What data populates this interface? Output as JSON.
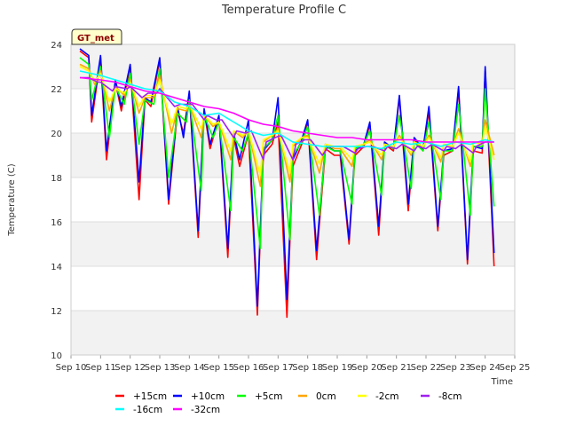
{
  "chart_data": {
    "type": "line",
    "title": "Temperature Profile C",
    "xlabel": "Time",
    "ylabel": "Temperature (C)",
    "badge": "GT_met",
    "xlim": [
      10,
      25
    ],
    "ylim": [
      10,
      24
    ],
    "x_ticks": [
      {
        "v": 10,
        "label": "Sep 10"
      },
      {
        "v": 11,
        "label": "Sep 11"
      },
      {
        "v": 12,
        "label": "Sep 12"
      },
      {
        "v": 13,
        "label": "Sep 13"
      },
      {
        "v": 14,
        "label": "Sep 14"
      },
      {
        "v": 15,
        "label": "Sep 15"
      },
      {
        "v": 16,
        "label": "Sep 16"
      },
      {
        "v": 17,
        "label": "Sep 17"
      },
      {
        "v": 18,
        "label": "Sep 18"
      },
      {
        "v": 19,
        "label": "Sep 19"
      },
      {
        "v": 20,
        "label": "Sep 20"
      },
      {
        "v": 21,
        "label": "Sep 21"
      },
      {
        "v": 22,
        "label": "Sep 22"
      },
      {
        "v": 23,
        "label": "Sep 23"
      },
      {
        "v": 24,
        "label": "Sep 24"
      },
      {
        "v": 25,
        "label": "Sep 25"
      }
    ],
    "y_ticks": [
      10,
      12,
      14,
      16,
      18,
      20,
      22,
      24
    ],
    "grid": true,
    "legend_position": "bottom",
    "series": [
      {
        "name": "+15cm",
        "color": "#ff0000",
        "x": [
          10.3,
          10.6,
          10.7,
          11.0,
          11.2,
          11.5,
          11.7,
          12.0,
          12.3,
          12.5,
          12.7,
          13.0,
          13.3,
          13.6,
          13.8,
          14.0,
          14.3,
          14.5,
          14.7,
          15.0,
          15.3,
          15.5,
          15.7,
          16.0,
          16.3,
          16.5,
          16.8,
          17.0,
          17.3,
          17.5,
          17.8,
          18.0,
          18.3,
          18.6,
          18.9,
          19.1,
          19.4,
          19.6,
          19.9,
          20.1,
          20.4,
          20.6,
          20.9,
          21.1,
          21.4,
          21.6,
          21.9,
          22.1,
          22.4,
          22.6,
          22.9,
          23.1,
          23.4,
          23.6,
          23.9,
          24.0,
          24.3
        ],
        "values": [
          23.7,
          23.4,
          20.5,
          23.4,
          18.8,
          22.3,
          21.0,
          23.0,
          17.0,
          21.5,
          21.2,
          23.3,
          16.8,
          21.0,
          20.0,
          21.8,
          15.3,
          21.0,
          19.3,
          20.7,
          14.4,
          19.8,
          18.5,
          20.0,
          11.8,
          19.0,
          19.5,
          20.5,
          11.7,
          18.5,
          19.5,
          20.5,
          14.3,
          19.3,
          19.0,
          19.0,
          15.0,
          19.0,
          19.4,
          20.4,
          15.4,
          19.5,
          19.2,
          21.6,
          16.5,
          19.7,
          19.2,
          21.0,
          15.6,
          19.0,
          19.2,
          22.0,
          14.1,
          19.2,
          19.1,
          22.8,
          14.0
        ]
      },
      {
        "name": "+10cm",
        "color": "#0000ff",
        "x": [
          10.3,
          10.6,
          10.7,
          11.0,
          11.2,
          11.5,
          11.7,
          12.0,
          12.3,
          12.5,
          12.7,
          13.0,
          13.3,
          13.6,
          13.8,
          14.0,
          14.3,
          14.5,
          14.7,
          15.0,
          15.3,
          15.5,
          15.7,
          16.0,
          16.3,
          16.5,
          16.8,
          17.0,
          17.3,
          17.5,
          17.8,
          18.0,
          18.3,
          18.6,
          18.9,
          19.1,
          19.4,
          19.6,
          19.9,
          20.1,
          20.4,
          20.6,
          20.9,
          21.1,
          21.4,
          21.6,
          21.9,
          22.1,
          22.4,
          22.6,
          22.9,
          23.1,
          23.4,
          23.6,
          23.9,
          24.0,
          24.3
        ],
        "values": [
          23.8,
          23.5,
          20.8,
          23.5,
          19.2,
          22.4,
          21.2,
          23.1,
          17.8,
          21.6,
          21.4,
          23.4,
          17.0,
          21.2,
          19.8,
          21.9,
          15.6,
          21.1,
          19.5,
          20.8,
          14.8,
          20.0,
          18.8,
          20.6,
          12.2,
          19.2,
          19.7,
          21.6,
          12.5,
          18.8,
          19.7,
          20.6,
          14.7,
          19.5,
          19.2,
          19.2,
          15.2,
          19.2,
          19.5,
          20.5,
          15.8,
          19.6,
          19.3,
          21.7,
          16.8,
          19.8,
          19.3,
          21.2,
          15.8,
          19.2,
          19.3,
          22.1,
          14.3,
          19.4,
          19.3,
          23.0,
          14.6
        ]
      },
      {
        "name": "+5cm",
        "color": "#00ff00",
        "x": [
          10.3,
          10.6,
          10.7,
          11.0,
          11.3,
          11.5,
          11.8,
          12.0,
          12.3,
          12.5,
          12.8,
          13.0,
          13.3,
          13.6,
          13.9,
          14.0,
          14.4,
          14.5,
          14.8,
          15.0,
          15.4,
          15.5,
          15.8,
          16.0,
          16.4,
          16.5,
          16.8,
          17.0,
          17.4,
          17.5,
          17.8,
          18.0,
          18.4,
          18.6,
          18.9,
          19.1,
          19.5,
          19.6,
          19.9,
          20.1,
          20.5,
          20.6,
          20.9,
          21.1,
          21.5,
          21.6,
          21.9,
          22.1,
          22.5,
          22.6,
          22.9,
          23.1,
          23.5,
          23.6,
          23.9,
          24.0,
          24.3
        ],
        "values": [
          23.4,
          23.1,
          21.5,
          23.0,
          19.8,
          22.1,
          21.3,
          22.7,
          19.5,
          21.5,
          21.3,
          22.9,
          18.0,
          20.9,
          20.5,
          21.5,
          17.4,
          20.8,
          19.8,
          20.5,
          16.5,
          19.8,
          19.2,
          20.0,
          14.8,
          19.3,
          19.7,
          20.8,
          15.2,
          19.0,
          19.6,
          20.3,
          16.3,
          19.4,
          19.2,
          19.2,
          16.8,
          19.3,
          19.5,
          20.1,
          17.2,
          19.5,
          19.3,
          20.8,
          17.5,
          19.6,
          19.2,
          20.5,
          17.0,
          19.2,
          19.2,
          21.3,
          16.3,
          19.4,
          19.4,
          22.0,
          16.7
        ]
      },
      {
        "name": "0cm",
        "color": "#ffa500",
        "x": [
          10.3,
          10.6,
          10.8,
          11.0,
          11.3,
          11.5,
          11.8,
          12.0,
          12.3,
          12.5,
          12.8,
          13.0,
          13.4,
          13.6,
          13.9,
          14.0,
          14.4,
          14.5,
          14.8,
          15.0,
          15.4,
          15.5,
          15.8,
          16.0,
          16.4,
          16.5,
          16.8,
          17.0,
          17.4,
          17.5,
          17.8,
          18.0,
          18.4,
          18.6,
          18.9,
          19.1,
          19.5,
          19.6,
          19.9,
          20.1,
          20.5,
          20.6,
          20.9,
          21.1,
          21.5,
          21.6,
          21.9,
          22.1,
          22.5,
          22.6,
          22.9,
          23.1,
          23.5,
          23.6,
          23.9,
          24.0,
          24.3
        ],
        "values": [
          23.1,
          22.9,
          22.2,
          22.8,
          21.0,
          22.1,
          21.7,
          22.4,
          20.9,
          21.6,
          21.6,
          22.6,
          20.0,
          21.1,
          21.0,
          21.3,
          19.8,
          20.8,
          20.3,
          20.5,
          18.8,
          20.1,
          19.8,
          20.1,
          17.6,
          19.6,
          19.9,
          20.2,
          17.8,
          19.4,
          19.8,
          19.9,
          18.2,
          19.5,
          19.3,
          19.3,
          18.5,
          19.4,
          19.5,
          19.7,
          18.8,
          19.5,
          19.4,
          19.9,
          19.0,
          19.6,
          19.4,
          19.9,
          18.7,
          19.5,
          19.4,
          20.2,
          18.5,
          19.6,
          19.5,
          20.6,
          19.0
        ]
      },
      {
        "name": "-2cm",
        "color": "#ffff00",
        "x": [
          10.3,
          10.6,
          10.8,
          11.0,
          11.3,
          11.5,
          11.8,
          12.0,
          12.3,
          12.5,
          12.8,
          13.0,
          13.4,
          13.6,
          13.9,
          14.0,
          14.4,
          14.5,
          14.8,
          15.0,
          15.4,
          15.5,
          15.8,
          16.0,
          16.4,
          16.5,
          16.8,
          17.0,
          17.4,
          17.5,
          17.8,
          18.0,
          18.4,
          18.6,
          18.9,
          19.1,
          19.5,
          19.6,
          19.9,
          20.1,
          20.5,
          20.6,
          20.9,
          21.1,
          21.5,
          21.6,
          21.9,
          22.1,
          22.5,
          22.6,
          22.9,
          23.1,
          23.5,
          23.6,
          23.9,
          24.0,
          24.3
        ],
        "values": [
          23.0,
          22.8,
          22.3,
          22.7,
          21.4,
          22.0,
          21.8,
          22.3,
          21.2,
          21.7,
          21.7,
          22.4,
          20.4,
          21.2,
          21.1,
          21.3,
          20.2,
          20.8,
          20.4,
          20.5,
          19.2,
          20.1,
          19.9,
          20.1,
          18.1,
          19.7,
          19.9,
          20.1,
          18.2,
          19.5,
          19.8,
          19.8,
          18.6,
          19.5,
          19.4,
          19.4,
          18.8,
          19.4,
          19.5,
          19.6,
          19.0,
          19.5,
          19.4,
          19.8,
          19.1,
          19.6,
          19.4,
          19.8,
          18.9,
          19.5,
          19.4,
          20.0,
          18.7,
          19.6,
          19.5,
          20.3,
          18.8
        ]
      },
      {
        "name": "-8cm",
        "color": "#a020f0",
        "x": [
          10.3,
          10.6,
          10.9,
          11.0,
          11.4,
          11.5,
          11.9,
          12.0,
          12.4,
          12.6,
          12.9,
          13.0,
          13.5,
          13.7,
          14.0,
          14.1,
          14.5,
          14.6,
          14.9,
          15.1,
          15.5,
          15.6,
          15.9,
          16.1,
          16.5,
          16.6,
          16.9,
          17.1,
          17.5,
          17.6,
          17.9,
          18.1,
          18.5,
          18.7,
          19.0,
          19.2,
          19.6,
          19.7,
          20.0,
          20.2,
          20.6,
          20.7,
          21.0,
          21.2,
          21.6,
          21.7,
          22.0,
          22.2,
          22.6,
          22.7,
          23.0,
          23.2,
          23.6,
          23.7,
          24.0,
          24.3
        ],
        "values": [
          22.5,
          22.5,
          22.3,
          22.3,
          21.9,
          22.1,
          22.0,
          22.1,
          21.6,
          21.8,
          21.8,
          22.0,
          21.2,
          21.3,
          21.3,
          21.3,
          20.6,
          20.8,
          20.6,
          20.6,
          19.8,
          20.1,
          20.0,
          20.1,
          18.8,
          19.6,
          19.8,
          19.9,
          18.8,
          19.5,
          19.7,
          19.7,
          19.0,
          19.4,
          19.4,
          19.4,
          19.1,
          19.3,
          19.4,
          19.4,
          19.2,
          19.4,
          19.3,
          19.5,
          19.2,
          19.4,
          19.3,
          19.5,
          19.2,
          19.4,
          19.3,
          19.5,
          19.1,
          19.4,
          19.6,
          19.6
        ]
      },
      {
        "name": "-16cm",
        "color": "#00ffff",
        "x": [
          10.3,
          11.0,
          11.5,
          12.0,
          12.5,
          13.0,
          13.5,
          14.0,
          14.5,
          15.0,
          15.5,
          16.0,
          16.5,
          17.0,
          17.5,
          18.0,
          18.5,
          19.0,
          19.5,
          20.0,
          20.5,
          21.0,
          21.5,
          22.0,
          22.5,
          23.0,
          23.5,
          24.0,
          24.3
        ],
        "values": [
          22.8,
          22.6,
          22.4,
          22.2,
          22.0,
          21.9,
          21.4,
          21.2,
          20.8,
          20.9,
          20.5,
          20.1,
          19.9,
          20.0,
          19.6,
          19.5,
          19.4,
          19.4,
          19.4,
          19.4,
          19.3,
          19.6,
          19.5,
          19.6,
          19.4,
          19.6,
          19.5,
          19.7,
          19.6
        ]
      },
      {
        "name": "-32cm",
        "color": "#ff00ff",
        "x": [
          10.3,
          11.0,
          11.5,
          12.0,
          12.5,
          13.0,
          13.5,
          14.0,
          14.5,
          15.0,
          15.5,
          16.0,
          16.5,
          17.0,
          17.5,
          18.0,
          18.5,
          19.0,
          19.5,
          20.0,
          20.5,
          21.0,
          21.5,
          22.0,
          22.5,
          23.0,
          23.5,
          24.0,
          24.3
        ],
        "values": [
          22.5,
          22.4,
          22.3,
          22.1,
          21.9,
          21.8,
          21.6,
          21.4,
          21.2,
          21.1,
          20.9,
          20.6,
          20.4,
          20.3,
          20.1,
          20.0,
          19.9,
          19.8,
          19.8,
          19.7,
          19.7,
          19.7,
          19.7,
          19.6,
          19.6,
          19.6,
          19.6,
          19.6,
          19.6
        ]
      }
    ]
  }
}
